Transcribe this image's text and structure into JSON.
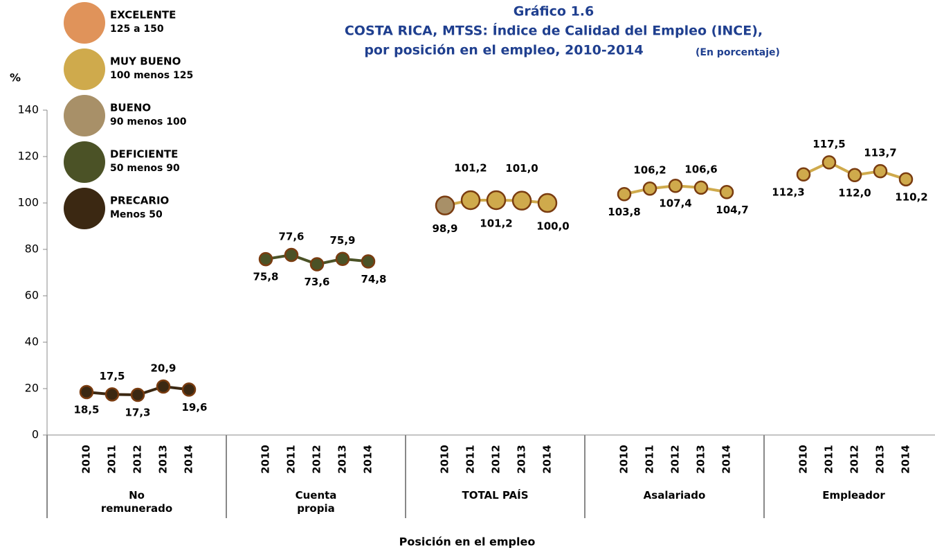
{
  "chart_data": {
    "type": "line",
    "title": "Gráfico 1.6",
    "title_line2": "COSTA RICA, MTSS:  Índice de Calidad del Empleo (INCE),",
    "title_line3": "por posición en el empleo, 2010-2014",
    "subtitle": "(En porcentaje)",
    "y_label": "%",
    "x_label": "Posición en el empleo",
    "categories": [
      "2010",
      "2011",
      "2012",
      "2013",
      "2014"
    ],
    "ylim": [
      0,
      140
    ],
    "yticks": [
      0,
      20,
      40,
      60,
      80,
      100,
      120,
      140
    ],
    "legend": [
      {
        "label": "EXCELENTE",
        "range": "125 a 150",
        "color": "#e0935a"
      },
      {
        "label": "MUY BUENO",
        "range": "100 menos 125",
        "color": "#cfaa4c"
      },
      {
        "label": "BUENO",
        "range": "90 menos 100",
        "color": "#a89068"
      },
      {
        "label": "DEFICIENTE",
        "range": "50 menos 90",
        "color": "#4b5226"
      },
      {
        "label": "PRECARIO",
        "range": "Menos 50",
        "color": "#3b2812"
      }
    ],
    "series": [
      {
        "name": "No remunerado",
        "color": "#3b2812",
        "point_colors": [
          "#3b2812",
          "#3b2812",
          "#3b2812",
          "#3b2812",
          "#3b2812"
        ],
        "values": [
          18.5,
          17.5,
          17.3,
          20.9,
          19.6
        ],
        "value_labels": [
          "18,5",
          "17,5",
          "17,3",
          "20,9",
          "19,6"
        ]
      },
      {
        "name": "Cuenta propia",
        "color": "#4b5226",
        "point_colors": [
          "#4b5226",
          "#4b5226",
          "#4b5226",
          "#4b5226",
          "#4b5226"
        ],
        "values": [
          75.8,
          77.6,
          73.6,
          75.9,
          74.8
        ],
        "value_labels": [
          "75,8",
          "77,6",
          "73,6",
          "75,9",
          "74,8"
        ]
      },
      {
        "name": "TOTAL  PAÍS",
        "color": "#cfaa4c",
        "point_colors": [
          "#a89068",
          "#cfaa4c",
          "#cfaa4c",
          "#cfaa4c",
          "#cfaa4c"
        ],
        "values": [
          98.9,
          101.2,
          101.2,
          101.0,
          100.0
        ],
        "value_labels": [
          "98,9",
          "101,2",
          "101,2",
          "101,0",
          "100,0"
        ]
      },
      {
        "name": "Asalariado",
        "color": "#cfaa4c",
        "point_colors": [
          "#cfaa4c",
          "#cfaa4c",
          "#cfaa4c",
          "#cfaa4c",
          "#cfaa4c"
        ],
        "values": [
          103.8,
          106.2,
          107.4,
          106.6,
          104.7
        ],
        "value_labels": [
          "103,8",
          "106,2",
          "107,4",
          "106,6",
          "104,7"
        ]
      },
      {
        "name": "Empleador",
        "color": "#cfaa4c",
        "point_colors": [
          "#cfaa4c",
          "#cfaa4c",
          "#cfaa4c",
          "#cfaa4c",
          "#cfaa4c"
        ],
        "values": [
          112.3,
          117.5,
          112.0,
          113.7,
          110.2
        ],
        "value_labels": [
          "112,3",
          "117,5",
          "112,0",
          "113,7",
          "110,2"
        ]
      }
    ]
  }
}
